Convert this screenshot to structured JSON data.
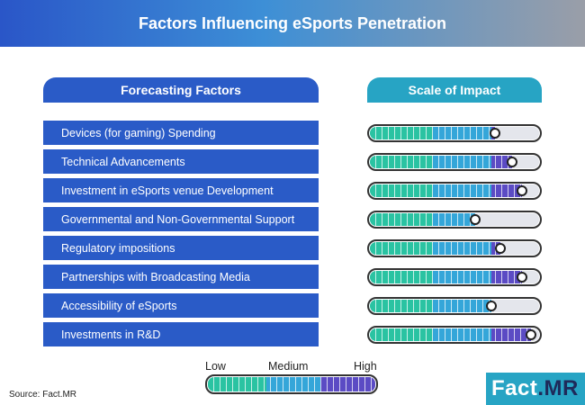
{
  "title": "Factors Influencing eSports Penetration",
  "headers": {
    "left": "Forecasting Factors",
    "right": "Scale of Impact"
  },
  "chart_data": {
    "type": "bar",
    "categories": [
      "Devices (for gaming) Spending",
      "Technical Advancements",
      "Investment in eSports venue Development",
      "Governmental and Non-Governmental Support",
      "Regulatory impositions",
      "Partnerships with Broadcasting Media",
      "Accessibility of eSports",
      "Investments in R&D"
    ],
    "values": [
      0.74,
      0.84,
      0.9,
      0.62,
      0.77,
      0.9,
      0.72,
      0.95
    ],
    "scale_labels": [
      "Low",
      "Medium",
      "High"
    ],
    "ylim": [
      0,
      1
    ]
  },
  "legend": {
    "low": "Low",
    "medium": "Medium",
    "high": "High"
  },
  "source": "Source: Fact.MR",
  "logo": {
    "main": "Fact",
    "suffix": ".MR"
  },
  "colors": {
    "blue": "#2a5bc7",
    "teal": "#27a4c4",
    "green": "#2ac3a2",
    "light_blue": "#34a6d9",
    "purple": "#5b4bc4"
  }
}
